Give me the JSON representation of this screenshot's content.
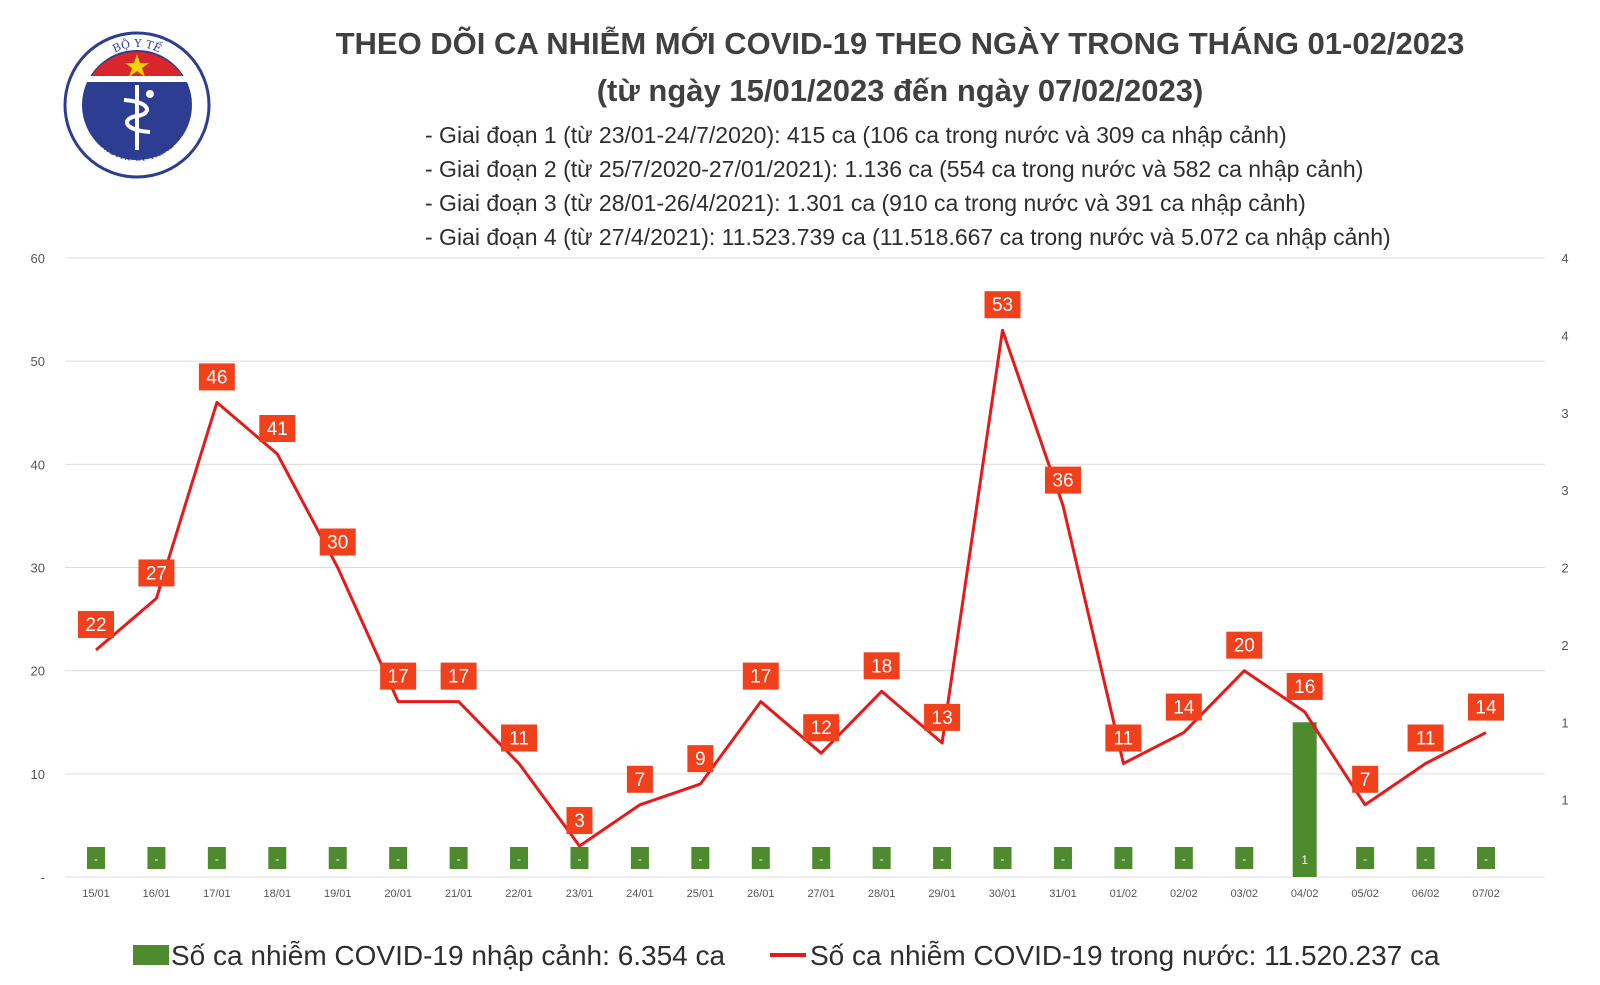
{
  "header": {
    "title_line1": "THEO DÕI CA NHIỄM MỚI COVID-19 THEO NGÀY TRONG THÁNG 01-02/2023",
    "title_line2": "(từ ngày 15/01/2023 đến ngày 07/02/2023)",
    "notes": [
      "- Giai đoạn 1 (từ 23/01-24/7/2020): 415 ca (106 ca trong nước và 309 ca nhập cảnh)",
      "- Giai đoạn 2 (từ 25/7/2020-27/01/2021): 1.136 ca (554 ca trong nước và 582 ca nhập cảnh)",
      "- Giai đoạn 3 (từ 28/01-26/4/2021): 1.301 ca (910 ca trong nước và 391 ca nhập cảnh)",
      "- Giai đoạn 4 (từ 27/4/2021): 11.523.739 ca (11.518.667 ca trong nước và 5.072 ca nhập cảnh)"
    ]
  },
  "logo": {
    "top_text": "BỘ Y TẾ",
    "bottom_text": "MINISTRY OF HEALTH"
  },
  "colors": {
    "line": "#e51b1b",
    "label_box": "#f0401c",
    "bar": "#4e8a2e",
    "logo_blue": "#2d3d91",
    "logo_red": "#d9262a",
    "grid": "#dcdcdc"
  },
  "chart_data": {
    "type": "line",
    "categories": [
      "15/01",
      "16/01",
      "17/01",
      "18/01",
      "19/01",
      "20/01",
      "21/01",
      "22/01",
      "23/01",
      "24/01",
      "25/01",
      "26/01",
      "27/01",
      "28/01",
      "29/01",
      "30/01",
      "31/01",
      "01/02",
      "02/02",
      "03/02",
      "04/02",
      "05/02",
      "06/02",
      "07/02"
    ],
    "series": [
      {
        "name": "Số ca nhiễm COVID-19 trong nước: 11.520.237 ca",
        "axis": "left",
        "type": "line",
        "values": [
          22,
          27,
          46,
          41,
          30,
          17,
          17,
          11,
          3,
          7,
          9,
          17,
          12,
          18,
          13,
          53,
          36,
          11,
          14,
          20,
          16,
          7,
          11,
          14
        ]
      },
      {
        "name": "Số ca nhiễm COVID-19 nhập cảnh: 6.354 ca",
        "axis": "right",
        "type": "bar",
        "values": [
          0,
          0,
          0,
          0,
          0,
          0,
          0,
          0,
          0,
          0,
          0,
          0,
          0,
          0,
          0,
          0,
          0,
          0,
          0,
          0,
          1,
          0,
          0,
          0
        ],
        "labels": [
          "-",
          "-",
          "-",
          "-",
          "-",
          "-",
          "-",
          "-",
          "-",
          "-",
          "-",
          "-",
          "-",
          "-",
          "-",
          "-",
          "-",
          "-",
          "-",
          "-",
          "1",
          "-",
          "-",
          "-"
        ]
      }
    ],
    "y_left": {
      "ylim": [
        0,
        60
      ],
      "ticks": [
        "-",
        "10",
        "20",
        "30",
        "40",
        "50",
        "60"
      ]
    },
    "y_right": {
      "ylim": [
        0,
        4
      ],
      "ticks": [
        "1",
        "1",
        "2",
        "2",
        "3",
        "3",
        "4",
        "4"
      ]
    },
    "grid": true,
    "legend_placement": "bottom"
  }
}
